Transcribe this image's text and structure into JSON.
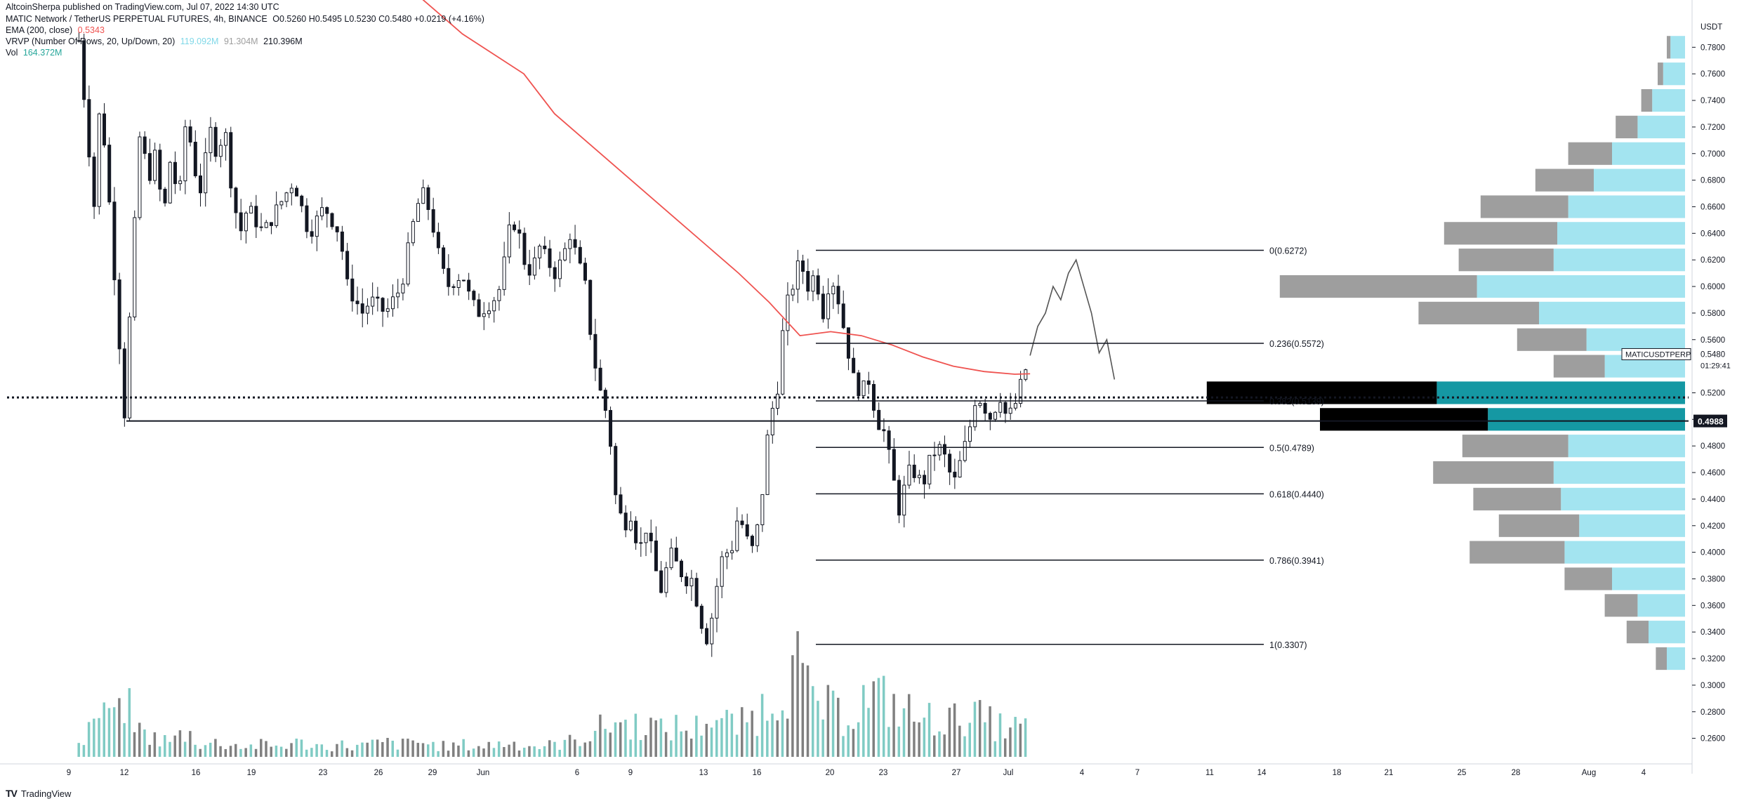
{
  "header": {
    "published": "AltcoinSherpa published on TradingView.com, Jul 07, 2022 14:30 UTC",
    "symbol_line": "MATIC Network / TetherUS PERPETUAL FUTURES, 4h, BINANCE",
    "ohlc": "O0.5260  H0.5495  L0.5230  C0.5480  +0.0219 (+4.16%)",
    "ema_label": "EMA (200, close)",
    "ema_value": "0.5343",
    "vrvp_label": "VRVP (Number Of Rows, 20, Up/Down, 20)",
    "vrvp_up": "119.092M",
    "vrvp_down": "91.304M",
    "vrvp_total": "210.396M",
    "vol_label": "Vol",
    "vol_value": "164.372M"
  },
  "footer": {
    "brand": "TradingView",
    "logo": "TV"
  },
  "colors": {
    "ema": "#ef5350",
    "candle": "#131722",
    "vol_up": "#80cbc4",
    "vol_down": "#808080",
    "vp_up": "#a3e4f0",
    "vp_down": "#9e9e9e",
    "vp_va_up": "#1598a3",
    "vp_va_down": "#000000",
    "fib": "#131722",
    "price_tag_bg": "#131722",
    "price_tag_text": "#ffffff"
  },
  "chart_data": {
    "type": "candlestick",
    "title": "MATIC Network / TetherUS PERPETUAL FUTURES, 4h, BINANCE",
    "timeframe": "4h",
    "y_unit": "USDT",
    "ylim": [
      0.245,
      0.805
    ],
    "y_ticks": [
      "0.7800",
      "0.7600",
      "0.7400",
      "0.7200",
      "0.7000",
      "0.6800",
      "0.6600",
      "0.6400",
      "0.6200",
      "0.6000",
      "0.5800",
      "0.5600",
      "0.5200",
      "0.5000",
      "0.4800",
      "0.4600",
      "0.4400",
      "0.4200",
      "0.4000",
      "0.3800",
      "0.3600",
      "0.3400",
      "0.3200",
      "0.3000",
      "0.2800",
      "0.2600"
    ],
    "x_ticks": [
      "9",
      "12",
      "16",
      "19",
      "23",
      "26",
      "29",
      "Jun",
      "6",
      "9",
      "13",
      "16",
      "20",
      "23",
      "27",
      "Jul",
      "4",
      "7",
      "11",
      "14",
      "18",
      "21",
      "25",
      "28",
      "Aug",
      "4"
    ],
    "last_price": {
      "value": 0.548,
      "label": "0.5480"
    },
    "countdown": "01:29:41",
    "symbol_tag": "MATICUSDTPERP",
    "horizontal_level": {
      "value": 0.4988,
      "label": "0.4988"
    },
    "dotted_level": {
      "value": 0.5165
    },
    "fib_levels": [
      {
        "ratio": 0,
        "price": 0.6272,
        "label": "0(0.6272)"
      },
      {
        "ratio": 0.236,
        "price": 0.5572,
        "label": "0.236(0.5572)"
      },
      {
        "ratio": 0.382,
        "price": 0.5139,
        "label": "0.382(0.5139)"
      },
      {
        "ratio": 0.5,
        "price": 0.4789,
        "label": "0.5(0.4789)"
      },
      {
        "ratio": 0.618,
        "price": 0.444,
        "label": "0.618(0.4440)"
      },
      {
        "ratio": 0.786,
        "price": 0.3941,
        "label": "0.786(0.3941)"
      },
      {
        "ratio": 1,
        "price": 0.3307,
        "label": "1(0.3307)"
      }
    ],
    "price_path": [
      [
        9,
        0.785
      ],
      [
        10,
        0.66
      ],
      [
        10.4,
        0.745
      ],
      [
        11,
        0.66
      ],
      [
        11.5,
        0.58
      ],
      [
        12,
        0.5
      ],
      [
        12.4,
        0.6
      ],
      [
        13,
        0.72
      ],
      [
        13.5,
        0.68
      ],
      [
        14,
        0.7
      ],
      [
        14.5,
        0.65
      ],
      [
        15,
        0.7
      ],
      [
        15.5,
        0.66
      ],
      [
        16,
        0.73
      ],
      [
        16.5,
        0.69
      ],
      [
        17,
        0.67
      ],
      [
        17.5,
        0.72
      ],
      [
        18,
        0.7
      ],
      [
        18.5,
        0.72
      ],
      [
        19,
        0.67
      ],
      [
        19.5,
        0.64
      ],
      [
        20,
        0.66
      ],
      [
        21,
        0.64
      ],
      [
        22,
        0.66
      ],
      [
        23,
        0.68
      ],
      [
        23.5,
        0.66
      ],
      [
        24,
        0.64
      ],
      [
        25,
        0.66
      ],
      [
        26,
        0.64
      ],
      [
        26.5,
        0.6
      ],
      [
        27,
        0.59
      ],
      [
        27.5,
        0.58
      ],
      [
        28,
        0.59
      ],
      [
        29,
        0.58
      ],
      [
        30,
        0.6
      ],
      [
        30.5,
        0.63
      ],
      [
        31,
        0.66
      ],
      [
        31.5,
        0.67
      ],
      [
        32,
        0.65
      ],
      [
        32.5,
        0.62
      ],
      [
        33,
        0.6
      ],
      [
        34,
        0.61
      ],
      [
        34.5,
        0.59
      ],
      [
        35,
        0.58
      ],
      [
        36,
        0.59
      ],
      [
        36.5,
        0.6
      ],
      [
        37,
        0.64
      ],
      [
        37.5,
        0.65
      ],
      [
        38,
        0.62
      ],
      [
        38.5,
        0.61
      ],
      [
        39,
        0.63
      ],
      [
        39.5,
        0.62
      ],
      [
        40,
        0.61
      ],
      [
        40.5,
        0.62
      ],
      [
        41,
        0.64
      ],
      [
        41.5,
        0.62
      ],
      [
        42,
        0.6
      ],
      [
        42.5,
        0.55
      ],
      [
        43,
        0.52
      ],
      [
        43.5,
        0.5
      ],
      [
        44,
        0.44
      ],
      [
        44.5,
        0.42
      ],
      [
        45,
        0.43
      ],
      [
        45.5,
        0.4
      ],
      [
        46,
        0.42
      ],
      [
        46.5,
        0.39
      ],
      [
        47,
        0.37
      ],
      [
        47.5,
        0.4
      ],
      [
        48,
        0.39
      ],
      [
        48.5,
        0.38
      ],
      [
        49,
        0.38
      ],
      [
        49.5,
        0.35
      ],
      [
        50,
        0.333
      ],
      [
        50.5,
        0.37
      ],
      [
        51,
        0.4
      ],
      [
        51.5,
        0.4
      ],
      [
        52,
        0.43
      ],
      [
        52.5,
        0.41
      ],
      [
        53,
        0.4
      ],
      [
        53.5,
        0.44
      ],
      [
        54,
        0.5
      ],
      [
        54.5,
        0.52
      ],
      [
        55,
        0.58
      ],
      [
        55.5,
        0.6
      ],
      [
        56,
        0.62
      ],
      [
        56.5,
        0.6
      ],
      [
        57,
        0.61
      ],
      [
        57.5,
        0.58
      ],
      [
        58,
        0.61
      ],
      [
        58.5,
        0.59
      ],
      [
        59,
        0.56
      ],
      [
        59.5,
        0.53
      ],
      [
        60,
        0.52
      ],
      [
        60.5,
        0.53
      ],
      [
        61,
        0.5
      ],
      [
        61.5,
        0.49
      ],
      [
        62,
        0.46
      ],
      [
        62.5,
        0.43
      ],
      [
        63,
        0.46
      ],
      [
        63.5,
        0.46
      ],
      [
        64,
        0.45
      ],
      [
        64.5,
        0.47
      ],
      [
        65,
        0.48
      ],
      [
        65.5,
        0.47
      ],
      [
        66,
        0.45
      ],
      [
        66.5,
        0.47
      ],
      [
        67,
        0.49
      ],
      [
        67.5,
        0.52
      ],
      [
        68,
        0.51
      ],
      [
        68.5,
        0.5
      ],
      [
        69,
        0.52
      ],
      [
        69.5,
        0.5
      ],
      [
        70,
        0.51
      ],
      [
        70.5,
        0.53
      ],
      [
        71,
        0.548
      ]
    ],
    "ema_200": [
      [
        30,
        0.83
      ],
      [
        34,
        0.79
      ],
      [
        38,
        0.76
      ],
      [
        40,
        0.73
      ],
      [
        42,
        0.71
      ],
      [
        44,
        0.69
      ],
      [
        46,
        0.67
      ],
      [
        48,
        0.65
      ],
      [
        50,
        0.63
      ],
      [
        52,
        0.61
      ],
      [
        54,
        0.588
      ],
      [
        56,
        0.563
      ],
      [
        58,
        0.566
      ],
      [
        60,
        0.563
      ],
      [
        62,
        0.556
      ],
      [
        64,
        0.547
      ],
      [
        66,
        0.54
      ],
      [
        68,
        0.536
      ],
      [
        70,
        0.534
      ],
      [
        71,
        0.5343
      ]
    ],
    "forecast_path": [
      [
        71,
        0.548
      ],
      [
        71.5,
        0.57
      ],
      [
        72,
        0.58
      ],
      [
        72.5,
        0.6
      ],
      [
        73,
        0.59
      ],
      [
        73.5,
        0.61
      ],
      [
        74,
        0.62
      ],
      [
        74.5,
        0.6
      ],
      [
        75,
        0.58
      ],
      [
        75.5,
        0.55
      ],
      [
        76,
        0.56
      ],
      [
        76.5,
        0.53
      ]
    ],
    "volume_profile": [
      {
        "price": 0.78,
        "up": 0.4,
        "down": 0.1
      },
      {
        "price": 0.76,
        "up": 0.6,
        "down": 0.15
      },
      {
        "price": 0.74,
        "up": 0.9,
        "down": 0.3
      },
      {
        "price": 0.72,
        "up": 1.3,
        "down": 0.6
      },
      {
        "price": 0.7,
        "up": 2.0,
        "down": 1.2
      },
      {
        "price": 0.68,
        "up": 2.5,
        "down": 1.6
      },
      {
        "price": 0.66,
        "up": 3.2,
        "down": 2.4
      },
      {
        "price": 0.64,
        "up": 3.5,
        "down": 3.1
      },
      {
        "price": 0.62,
        "up": 3.6,
        "down": 2.6
      },
      {
        "price": 0.6,
        "up": 5.7,
        "down": 5.4
      },
      {
        "price": 0.58,
        "up": 4.0,
        "down": 3.3
      },
      {
        "price": 0.56,
        "up": 2.7,
        "down": 1.9
      },
      {
        "price": 0.54,
        "up": 2.2,
        "down": 1.4
      },
      {
        "price": 0.52,
        "up": 6.8,
        "down": 6.3
      },
      {
        "price": 0.5,
        "up": 5.4,
        "down": 4.6
      },
      {
        "price": 0.48,
        "up": 3.2,
        "down": 2.9
      },
      {
        "price": 0.46,
        "up": 3.6,
        "down": 3.3
      },
      {
        "price": 0.44,
        "up": 3.4,
        "down": 2.4
      },
      {
        "price": 0.42,
        "up": 2.9,
        "down": 2.2
      },
      {
        "price": 0.4,
        "up": 3.3,
        "down": 2.6
      },
      {
        "price": 0.38,
        "up": 2.0,
        "down": 1.3
      },
      {
        "price": 0.36,
        "up": 1.3,
        "down": 0.9
      },
      {
        "price": 0.34,
        "up": 1.0,
        "down": 0.6
      },
      {
        "price": 0.32,
        "up": 0.5,
        "down": 0.3
      }
    ],
    "value_area": [
      0.49,
      0.53
    ],
    "volume": [
      [
        9,
        0.12
      ],
      [
        9.5,
        0.2
      ],
      [
        10,
        0.45
      ],
      [
        10.5,
        0.3
      ],
      [
        11,
        0.55
      ],
      [
        11.5,
        0.3
      ],
      [
        12,
        0.6
      ],
      [
        12.5,
        0.35
      ],
      [
        13,
        0.25
      ],
      [
        14,
        0.18
      ],
      [
        15,
        0.15
      ],
      [
        16,
        0.25
      ],
      [
        17,
        0.12
      ],
      [
        18,
        0.14
      ],
      [
        19,
        0.12
      ],
      [
        20,
        0.1
      ],
      [
        21,
        0.12
      ],
      [
        22,
        0.1
      ],
      [
        23,
        0.14
      ],
      [
        24,
        0.12
      ],
      [
        25,
        0.1
      ],
      [
        26,
        0.12
      ],
      [
        27,
        0.1
      ],
      [
        28,
        0.12
      ],
      [
        29,
        0.14
      ],
      [
        30,
        0.12
      ],
      [
        31,
        0.15
      ],
      [
        32,
        0.12
      ],
      [
        33,
        0.1
      ],
      [
        34,
        0.12
      ],
      [
        35,
        0.1
      ],
      [
        36,
        0.12
      ],
      [
        37,
        0.14
      ],
      [
        38,
        0.12
      ],
      [
        39,
        0.1
      ],
      [
        40,
        0.12
      ],
      [
        41,
        0.15
      ],
      [
        42,
        0.2
      ],
      [
        43,
        0.28
      ],
      [
        44,
        0.35
      ],
      [
        45,
        0.3
      ],
      [
        46,
        0.35
      ],
      [
        47,
        0.25
      ],
      [
        48,
        0.3
      ],
      [
        49,
        0.25
      ],
      [
        50,
        0.4
      ],
      [
        51,
        0.35
      ],
      [
        52,
        0.3
      ],
      [
        53,
        0.4
      ],
      [
        54,
        0.55
      ],
      [
        55,
        0.75
      ],
      [
        56,
        0.9
      ],
      [
        56.5,
        0.6
      ],
      [
        57,
        0.55
      ],
      [
        58,
        0.45
      ],
      [
        59,
        0.4
      ],
      [
        60,
        0.55
      ],
      [
        61,
        0.6
      ],
      [
        62,
        0.5
      ],
      [
        63,
        0.45
      ],
      [
        64,
        0.35
      ],
      [
        65,
        0.4
      ],
      [
        66,
        0.35
      ],
      [
        67,
        0.45
      ],
      [
        68,
        0.35
      ],
      [
        69,
        0.3
      ],
      [
        70,
        0.28
      ],
      [
        71,
        0.3
      ]
    ]
  }
}
